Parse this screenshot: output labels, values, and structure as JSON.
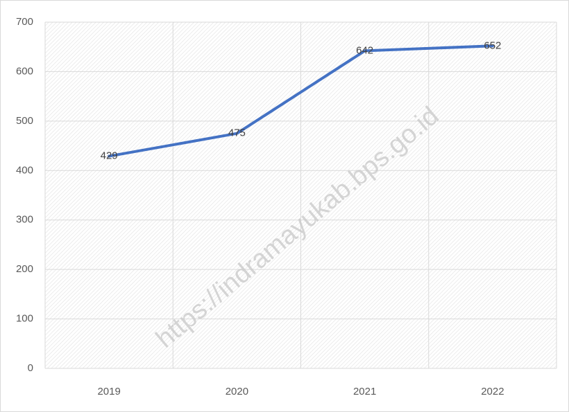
{
  "chart_data": {
    "type": "line",
    "categories": [
      "2019",
      "2020",
      "2021",
      "2022"
    ],
    "series": [
      {
        "name": null,
        "color": "#4472c4",
        "values": [
          429,
          475,
          642,
          652
        ]
      }
    ],
    "ylim": [
      0,
      700
    ],
    "yticks": [
      0,
      100,
      200,
      300,
      400,
      500,
      600,
      700
    ],
    "grid": true,
    "watermark": "https://indramayukab.bps.go.id"
  }
}
